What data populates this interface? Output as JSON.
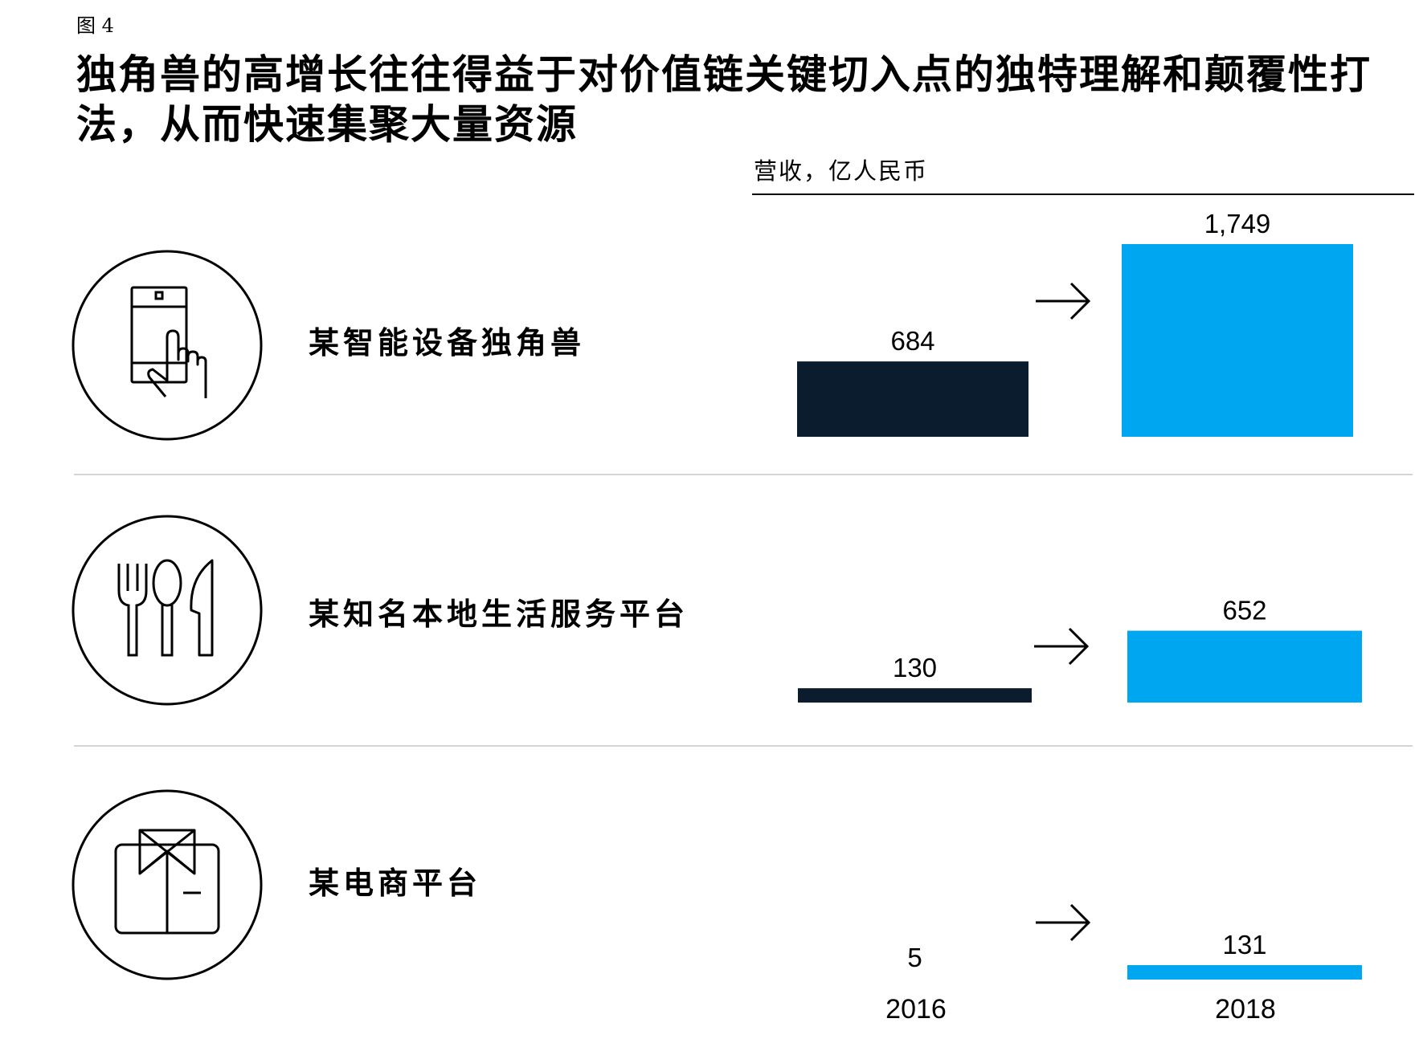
{
  "figure": {
    "label": "图 4",
    "title": "独角兽的高增长往往得益于对价值链关键切入点的独特理解和颠覆性打法，从而快速集聚大量资源"
  },
  "colors": {
    "y2016": "#0a1c2e",
    "y2018": "#00a6ef",
    "divider": "#d4d4d4"
  },
  "categories": [
    {
      "label": "某智能设备独角兽",
      "icon": "smartphone-touch-icon"
    },
    {
      "label": "某知名本地生活服务平台",
      "icon": "fork-spoon-knife-icon"
    },
    {
      "label": "某电商平台",
      "icon": "shirt-box-icon"
    }
  ],
  "chart_data": {
    "type": "bar",
    "ylabel": "营收，亿人民币",
    "x": [
      "2016",
      "2018"
    ],
    "categories": [
      "某智能设备独角兽",
      "某知名本地生活服务平台",
      "某电商平台"
    ],
    "series": [
      {
        "name": "2016",
        "values": [
          684,
          130,
          5
        ],
        "labels": [
          "684",
          "130",
          "5"
        ]
      },
      {
        "name": "2018",
        "values": [
          1749,
          652,
          131
        ],
        "labels": [
          "1,749",
          "652",
          "131"
        ]
      }
    ],
    "grid": false,
    "legend": "none"
  }
}
